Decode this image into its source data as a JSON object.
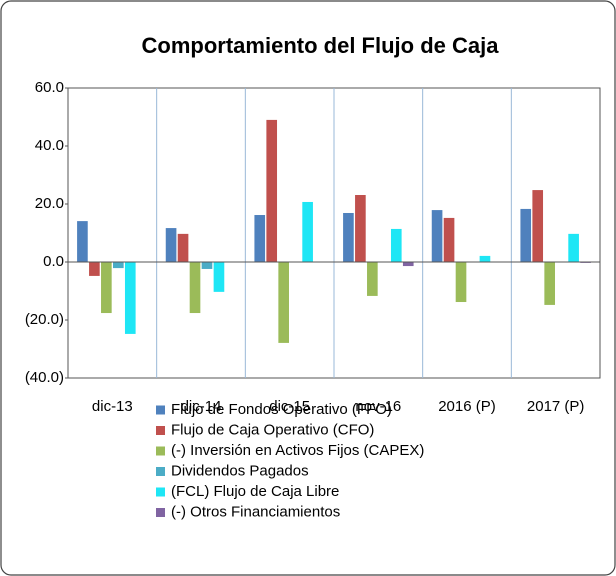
{
  "chart_data": {
    "type": "bar",
    "title": "Comportamiento del Flujo de Caja",
    "categories": [
      "dic-13",
      "dic-14",
      "dic-15",
      "nov-16",
      "2016 (P)",
      "2017 (P)"
    ],
    "series": [
      {
        "name": "Flujo de Fondos Operativo (FFO)",
        "color": "#4f81bd",
        "values": [
          14.1,
          11.7,
          16.2,
          16.9,
          17.9,
          18.3
        ]
      },
      {
        "name": "Flujo de Caja Operativo (CFO)",
        "color": "#c0504d",
        "values": [
          -4.8,
          9.7,
          49.0,
          23.1,
          15.2,
          24.8
        ]
      },
      {
        "name": "(-) Inversión en Activos Fijos (CAPEX)",
        "color": "#9bbb59",
        "values": [
          -17.6,
          -17.6,
          -27.9,
          -11.7,
          -13.8,
          -14.8
        ]
      },
      {
        "name": "Dividendos Pagados",
        "color": "#4bacc6",
        "values": [
          -2.1,
          -2.4,
          0,
          0,
          0,
          0
        ]
      },
      {
        "name": "(FCL) Flujo de Caja Libre",
        "color": "#1ee6f5",
        "values": [
          -24.8,
          -10.3,
          20.7,
          11.4,
          2.1,
          9.7
        ]
      },
      {
        "name": "(-) Otros Financiamientos",
        "color": "#8064a2",
        "values": [
          0,
          0,
          0,
          -1.4,
          0,
          -0.3
        ]
      }
    ],
    "ylim": [
      -40,
      60
    ],
    "yticks": [
      {
        "value": -40,
        "label": "(40.0)"
      },
      {
        "value": -20,
        "label": "(20.0)"
      },
      {
        "value": 0,
        "label": "0.0"
      },
      {
        "value": 20,
        "label": "20.0"
      },
      {
        "value": 40,
        "label": "40.0"
      },
      {
        "value": 60,
        "label": "60.0"
      }
    ],
    "legend": "bottom"
  }
}
